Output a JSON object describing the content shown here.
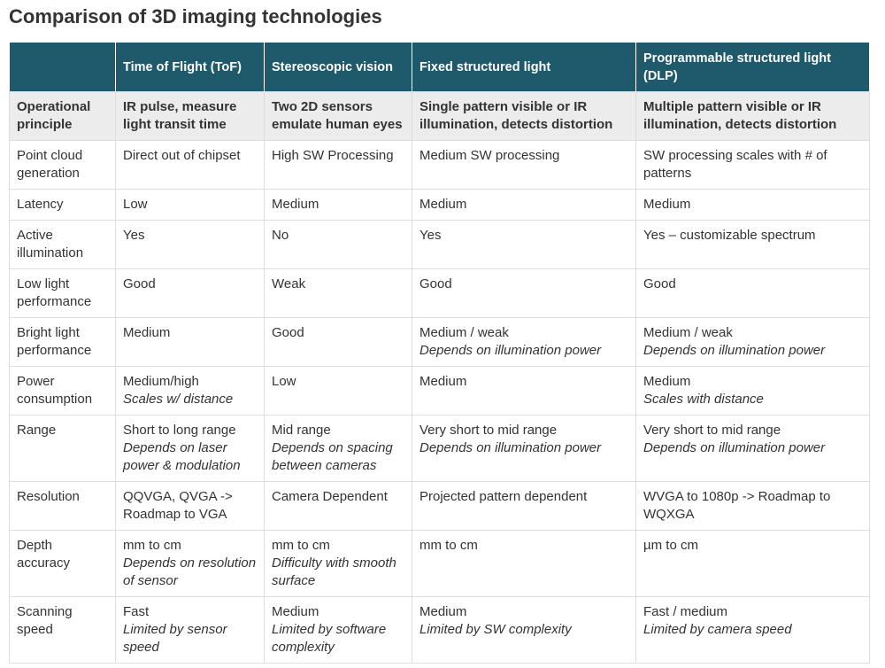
{
  "title": "Comparison of 3D imaging technologies",
  "table": {
    "header": [
      "Time of Flight (ToF)",
      "Stereoscopic vision",
      "Fixed structured light",
      "Programmable structured light (DLP)"
    ],
    "rows": [
      {
        "label": "Operational principle",
        "cells": [
          {
            "text": "IR pulse, measure light transit time"
          },
          {
            "text": "Two 2D sensors emulate human eyes"
          },
          {
            "text": "Single pattern visible or IR illumination, detects distortion"
          },
          {
            "text": "Multiple pattern visible or IR illumination, detects distortion"
          }
        ]
      },
      {
        "label": "Point cloud generation",
        "cells": [
          {
            "text": "Direct out of chipset"
          },
          {
            "text": "High SW Processing"
          },
          {
            "text": "Medium SW processing"
          },
          {
            "text": "SW processing scales with # of patterns"
          }
        ]
      },
      {
        "label": "Latency",
        "cells": [
          {
            "text": "Low"
          },
          {
            "text": "Medium"
          },
          {
            "text": "Medium"
          },
          {
            "text": "Medium"
          }
        ]
      },
      {
        "label": "Active illumination",
        "cells": [
          {
            "text": "Yes"
          },
          {
            "text": "No"
          },
          {
            "text": "Yes"
          },
          {
            "text": "Yes – customizable spectrum"
          }
        ]
      },
      {
        "label": "Low light performance",
        "cells": [
          {
            "text": "Good"
          },
          {
            "text": "Weak"
          },
          {
            "text": "Good"
          },
          {
            "text": "Good"
          }
        ]
      },
      {
        "label": "Bright light performance",
        "cells": [
          {
            "text": "Medium"
          },
          {
            "text": "Good"
          },
          {
            "text": "Medium / weak",
            "note": "Depends on illumination power"
          },
          {
            "text": "Medium / weak",
            "note": "Depends on illumination power"
          }
        ]
      },
      {
        "label": "Power consumption",
        "cells": [
          {
            "text": "Medium/high",
            "note": "Scales w/ distance"
          },
          {
            "text": "Low"
          },
          {
            "text": "Medium"
          },
          {
            "text": "Medium",
            "note": "Scales with distance"
          }
        ]
      },
      {
        "label": "Range",
        "cells": [
          {
            "text": "Short to long range",
            "note": "Depends on laser power & modulation"
          },
          {
            "text": "Mid range",
            "note": "Depends on spacing between cameras"
          },
          {
            "text": "Very short to mid range",
            "note": "Depends on illumination power"
          },
          {
            "text": "Very short to mid range",
            "note": "Depends on illumination power"
          }
        ]
      },
      {
        "label": "Resolution",
        "cells": [
          {
            "text": "QQVGA, QVGA -> Roadmap to VGA"
          },
          {
            "text": "Camera Dependent"
          },
          {
            "text": "Projected pattern dependent"
          },
          {
            "text": "WVGA to 1080p -> Roadmap to WQXGA"
          }
        ]
      },
      {
        "label": "Depth accuracy",
        "cells": [
          {
            "text": "mm to cm",
            "note": "Depends on resolution of sensor"
          },
          {
            "text": "mm to cm",
            "note": "Difficulty with smooth surface"
          },
          {
            "text": "mm to cm"
          },
          {
            "text": "µm to cm"
          }
        ]
      },
      {
        "label": "Scanning speed",
        "cells": [
          {
            "text": "Fast",
            "note": "Limited by sensor speed"
          },
          {
            "text": "Medium",
            "note": "Limited by software complexity"
          },
          {
            "text": "Medium",
            "note": "Limited by SW complexity"
          },
          {
            "text": "Fast / medium",
            "note": "Limited by camera speed"
          }
        ]
      }
    ]
  }
}
